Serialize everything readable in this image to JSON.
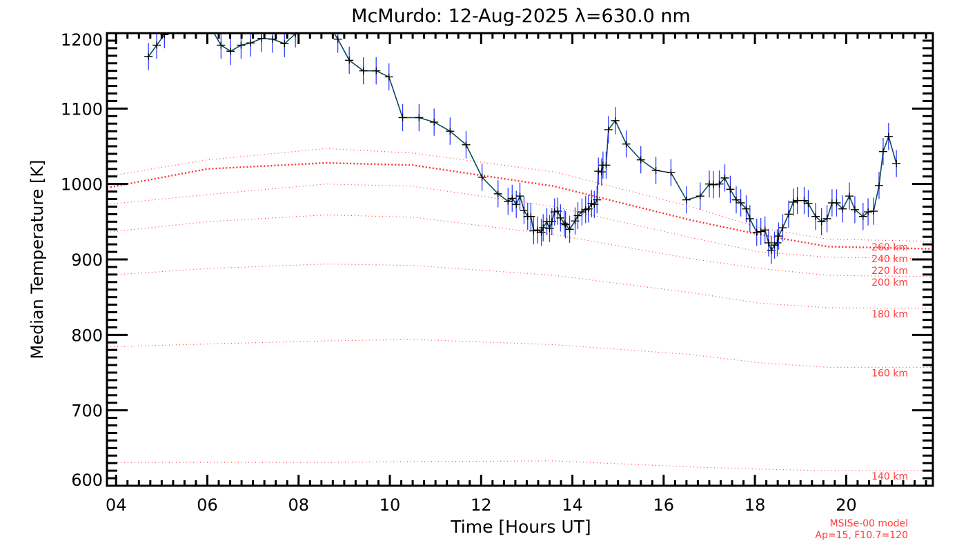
{
  "chart_data": {
    "type": "line",
    "title": "McMurdo: 12-Aug-2025 λ=630.0 nm",
    "xlabel": "Time [Hours UT]",
    "ylabel": "Median Temperature [K]",
    "xlim": [
      3.8,
      21.9
    ],
    "ylim": [
      600,
      1200
    ],
    "x_ticks": [
      4,
      6,
      8,
      10,
      12,
      14,
      16,
      18,
      20
    ],
    "x_tick_labels": [
      "04",
      "06",
      "08",
      "10",
      "12",
      "14",
      "16",
      "18",
      "20"
    ],
    "y_ticks": [
      600,
      700,
      800,
      900,
      1000,
      1100,
      1200
    ],
    "y_tick_labels": [
      "600",
      "700",
      "800",
      "900",
      "1000",
      "1100",
      "1200"
    ],
    "grid": false,
    "colors": {
      "line": "#0c4a5c",
      "marker": "#000000",
      "error": "#2b3cff",
      "model": "#ff3030"
    },
    "series": [
      {
        "name": "Median Temperature",
        "x": [
          4.71,
          4.89,
          5.06,
          5.29,
          5.62,
          6.0,
          6.3,
          6.51,
          6.74,
          6.95,
          7.19,
          7.43,
          7.69,
          7.93,
          8.27,
          8.57,
          8.86,
          9.11,
          9.42,
          9.7,
          9.98,
          10.28,
          10.64,
          10.97,
          11.32,
          11.67,
          12.02,
          12.37,
          12.59,
          12.68,
          12.77,
          12.85,
          12.94,
          13.02,
          13.09,
          13.15,
          13.24,
          13.32,
          13.36,
          13.44,
          13.5,
          13.55,
          13.61,
          13.68,
          13.74,
          13.82,
          13.85,
          13.94,
          14.06,
          14.12,
          14.21,
          14.29,
          14.35,
          14.42,
          14.48,
          14.54,
          14.57,
          14.64,
          14.67,
          14.74,
          14.79,
          14.94,
          15.18,
          15.5,
          15.83,
          16.16,
          16.5,
          16.8,
          17.0,
          17.09,
          17.22,
          17.34,
          17.46,
          17.59,
          17.69,
          17.81,
          17.89,
          18.04,
          18.13,
          18.22,
          18.3,
          18.36,
          18.43,
          18.49,
          18.52,
          18.61,
          18.74,
          18.84,
          18.93,
          19.08,
          19.17,
          19.33,
          19.46,
          19.58,
          19.69,
          19.79,
          19.92,
          20.07,
          20.19,
          20.37,
          20.48,
          20.6,
          20.72,
          20.81,
          20.93,
          21.1
        ],
        "y": [
          1169,
          1184,
          1198,
          1220,
          1225,
          1215,
          1184,
          1176,
          1184,
          1187,
          1193,
          1192,
          1186,
          1199,
          1225,
          1220,
          1192,
          1164,
          1150,
          1150,
          1142,
          1088,
          1088,
          1082,
          1070,
          1052,
          1009,
          987,
          977,
          981,
          973,
          984,
          965,
          957,
          957,
          938,
          939,
          936,
          942,
          950,
          941,
          950,
          963,
          964,
          955,
          948,
          946,
          940,
          951,
          958,
          963,
          966,
          967,
          974,
          973,
          979,
          1017,
          1016,
          1025,
          1025,
          1072,
          1084,
          1053,
          1032,
          1018,
          1015,
          979,
          984,
          1000,
          999,
          1000,
          1008,
          993,
          979,
          975,
          967,
          954,
          936,
          937,
          939,
          922,
          912,
          919,
          922,
          931,
          942,
          960,
          976,
          978,
          978,
          974,
          957,
          950,
          954,
          975,
          975,
          967,
          984,
          966,
          957,
          963,
          964,
          998,
          1043,
          1063,
          1027
        ],
        "error_K": 18
      }
    ],
    "model_curves": {
      "x": [
        3.8,
        6.0,
        8.6,
        10.5,
        13.6,
        16.6,
        18.1,
        19.6,
        21.9
      ],
      "curves": [
        {
          "label": "260 km",
          "thick": false,
          "y": [
            1010,
            1032,
            1047,
            1041,
            1016,
            970,
            942,
            927,
            924
          ]
        },
        {
          "label": "240 km",
          "thick": true,
          "y": [
            995,
            1020,
            1028,
            1025,
            997,
            952,
            933,
            917,
            914
          ]
        },
        {
          "label": "220 km",
          "thick": false,
          "y": [
            973,
            986,
            1000,
            997,
            970,
            929,
            910,
            903,
            901
          ]
        },
        {
          "label": "200 km",
          "thick": false,
          "y": [
            936,
            950,
            959,
            956,
            933,
            901,
            888,
            879,
            877
          ]
        },
        {
          "label": "180 km",
          "thick": false,
          "y": [
            879,
            888,
            894,
            892,
            879,
            856,
            842,
            836,
            835
          ]
        },
        {
          "label": "160 km",
          "thick": false,
          "y": [
            784,
            788,
            792,
            794,
            787,
            774,
            763,
            757,
            757
          ]
        },
        {
          "label": "140 km",
          "thick": false,
          "y": [
            631,
            631,
            631,
            632,
            633,
            625,
            622,
            620,
            620
          ]
        }
      ]
    },
    "annotations": [
      "MSISe-00 model",
      "Ap=15, F10.7=120"
    ]
  }
}
